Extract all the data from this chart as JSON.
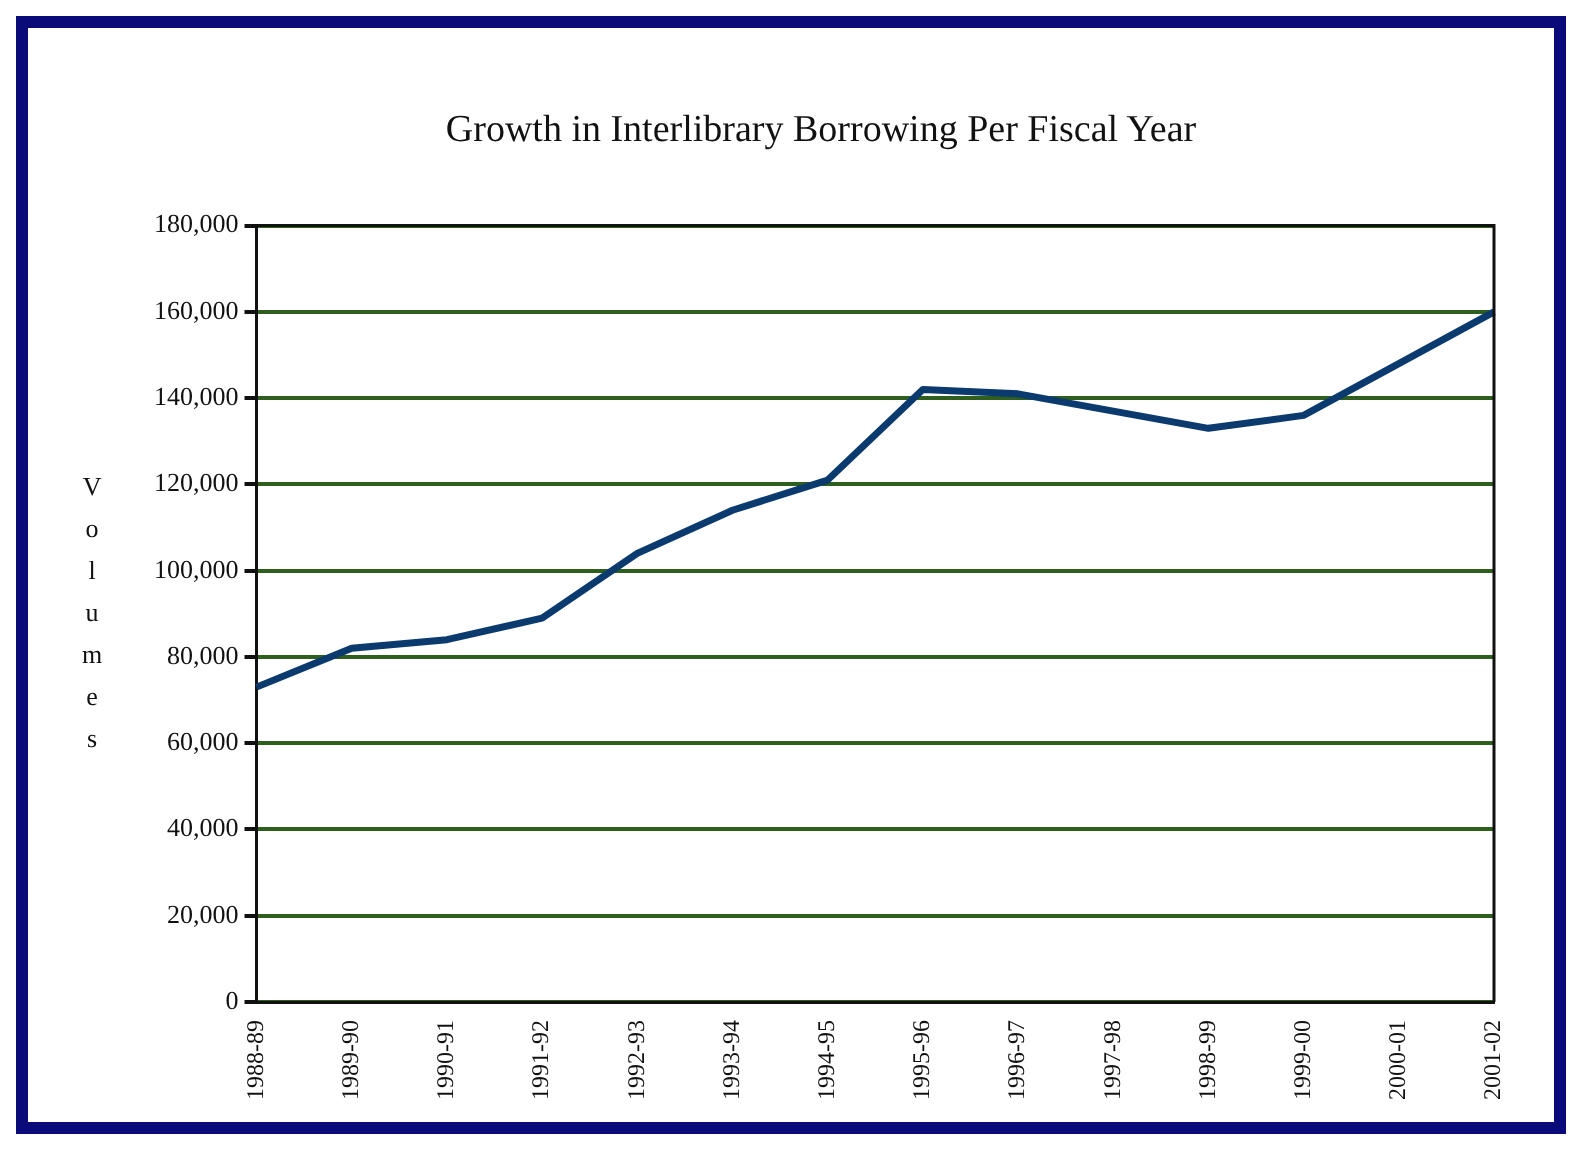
{
  "chart_data": {
    "type": "line",
    "title": "Growth in Interlibrary Borrowing Per Fiscal Year",
    "ylabel": "Volumes",
    "categories": [
      "1988-89",
      "1989-90",
      "1990-91",
      "1991-92",
      "1992-93",
      "1993-94",
      "1994-95",
      "1995-96",
      "1996-97",
      "1997-98",
      "1998-99",
      "1999-00",
      "2000-01",
      "2001-02"
    ],
    "series": [
      {
        "color": "#0b3a6e",
        "values": [
          73000,
          82000,
          84000,
          89000,
          104000,
          114000,
          121000,
          142000,
          141000,
          137000,
          133000,
          136000,
          148000,
          160000
        ]
      }
    ],
    "ylim": [
      0,
      180000
    ],
    "yticks": [
      0,
      {
        "value": 20000,
        "label": "20,000"
      },
      {
        "value": 40000,
        "label": "40,000"
      },
      {
        "value": 60000,
        "label": "60,000"
      },
      {
        "value": 80000,
        "label": "80,000"
      },
      {
        "value": 100000,
        "label": "100,000"
      },
      {
        "value": 120000,
        "label": "120,000"
      },
      {
        "value": 140000,
        "label": "140,000"
      },
      {
        "value": 160000,
        "label": "160,000"
      },
      {
        "value": 180000,
        "label": "180,000"
      }
    ],
    "grid": "y",
    "legend": false,
    "marker": "none",
    "line_style": "solid"
  }
}
